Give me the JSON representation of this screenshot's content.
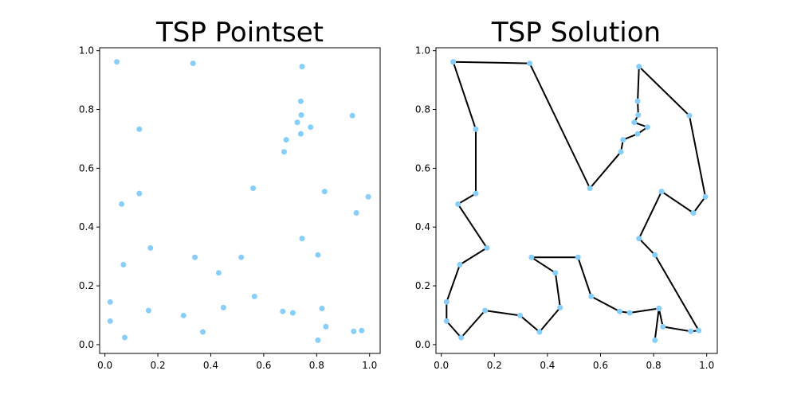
{
  "chart_data": [
    {
      "type": "scatter",
      "title": "TSP Pointset",
      "xlim": [
        -0.02,
        1.04
      ],
      "ylim": [
        -0.03,
        1.01
      ],
      "xticks": [
        "0.0",
        "0.2",
        "0.4",
        "0.6",
        "0.8",
        "1.0"
      ],
      "yticks": [
        "0.0",
        "0.2",
        "0.4",
        "0.6",
        "0.8",
        "1.0"
      ],
      "point_color": "#87cefa",
      "points": [
        [
          0.045,
          0.962
        ],
        [
          0.333,
          0.957
        ],
        [
          0.745,
          0.946
        ],
        [
          0.74,
          0.828
        ],
        [
          0.742,
          0.781
        ],
        [
          0.727,
          0.756
        ],
        [
          0.777,
          0.74
        ],
        [
          0.74,
          0.717
        ],
        [
          0.685,
          0.697
        ],
        [
          0.677,
          0.656
        ],
        [
          0.935,
          0.779
        ],
        [
          0.13,
          0.733
        ],
        [
          0.13,
          0.514
        ],
        [
          0.56,
          0.532
        ],
        [
          0.83,
          0.521
        ],
        [
          0.995,
          0.503
        ],
        [
          0.063,
          0.478
        ],
        [
          0.95,
          0.448
        ],
        [
          0.745,
          0.361
        ],
        [
          0.805,
          0.305
        ],
        [
          0.172,
          0.329
        ],
        [
          0.07,
          0.272
        ],
        [
          0.34,
          0.297
        ],
        [
          0.515,
          0.297
        ],
        [
          0.43,
          0.244
        ],
        [
          0.565,
          0.164
        ],
        [
          0.02,
          0.145
        ],
        [
          0.448,
          0.126
        ],
        [
          0.165,
          0.116
        ],
        [
          0.672,
          0.113
        ],
        [
          0.71,
          0.108
        ],
        [
          0.82,
          0.123
        ],
        [
          0.297,
          0.099
        ],
        [
          0.02,
          0.08
        ],
        [
          0.37,
          0.043
        ],
        [
          0.835,
          0.061
        ],
        [
          0.075,
          0.024
        ],
        [
          0.805,
          0.015
        ],
        [
          0.94,
          0.045
        ],
        [
          0.97,
          0.048
        ]
      ]
    },
    {
      "type": "line",
      "title": "TSP Solution",
      "xlim": [
        -0.02,
        1.04
      ],
      "ylim": [
        -0.03,
        1.01
      ],
      "xticks": [
        "0.0",
        "0.2",
        "0.4",
        "0.6",
        "0.8",
        "1.0"
      ],
      "yticks": [
        "0.0",
        "0.2",
        "0.4",
        "0.6",
        "0.8",
        "1.0"
      ],
      "point_color": "#87cefa",
      "line_color": "#000000",
      "tour": [
        [
          0.045,
          0.962
        ],
        [
          0.333,
          0.957
        ],
        [
          0.56,
          0.532
        ],
        [
          0.677,
          0.656
        ],
        [
          0.685,
          0.697
        ],
        [
          0.74,
          0.717
        ],
        [
          0.777,
          0.74
        ],
        [
          0.727,
          0.756
        ],
        [
          0.742,
          0.781
        ],
        [
          0.74,
          0.828
        ],
        [
          0.745,
          0.946
        ],
        [
          0.935,
          0.779
        ],
        [
          0.995,
          0.503
        ],
        [
          0.95,
          0.448
        ],
        [
          0.83,
          0.521
        ],
        [
          0.745,
          0.361
        ],
        [
          0.805,
          0.305
        ],
        [
          0.97,
          0.048
        ],
        [
          0.94,
          0.045
        ],
        [
          0.835,
          0.061
        ],
        [
          0.82,
          0.123
        ],
        [
          0.805,
          0.015
        ],
        [
          0.82,
          0.123
        ],
        [
          0.71,
          0.108
        ],
        [
          0.672,
          0.113
        ],
        [
          0.565,
          0.164
        ],
        [
          0.515,
          0.297
        ],
        [
          0.34,
          0.297
        ],
        [
          0.43,
          0.244
        ],
        [
          0.448,
          0.126
        ],
        [
          0.37,
          0.043
        ],
        [
          0.297,
          0.099
        ],
        [
          0.165,
          0.116
        ],
        [
          0.075,
          0.024
        ],
        [
          0.02,
          0.08
        ],
        [
          0.02,
          0.145
        ],
        [
          0.07,
          0.272
        ],
        [
          0.172,
          0.329
        ],
        [
          0.063,
          0.478
        ],
        [
          0.13,
          0.514
        ],
        [
          0.13,
          0.733
        ],
        [
          0.045,
          0.962
        ]
      ]
    }
  ]
}
